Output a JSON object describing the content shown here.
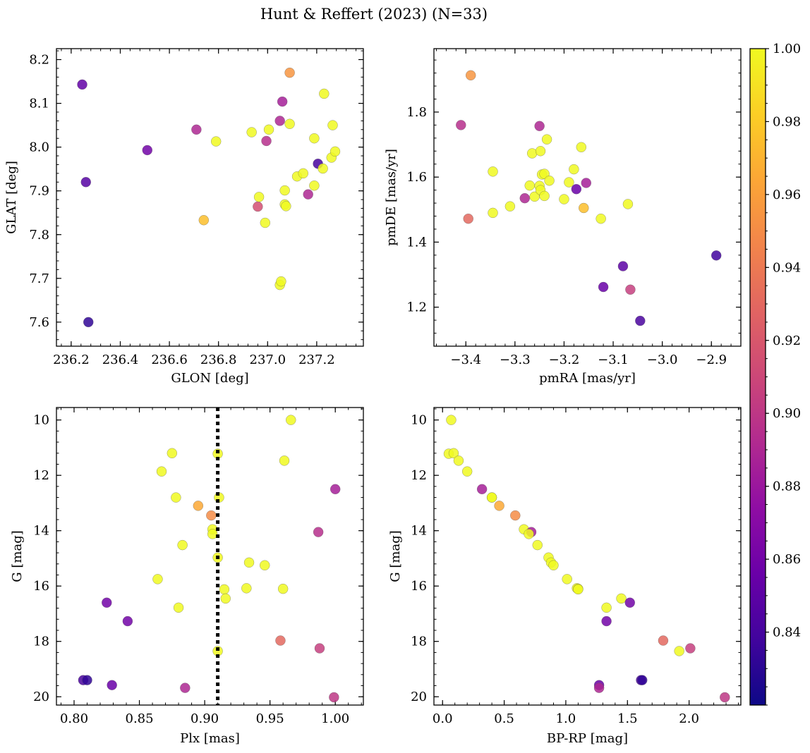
{
  "chart_data": {
    "type": "scatter",
    "title": "Hunt & Reffert (2023) (N=33)",
    "colorbar": {
      "colormap": "plasma",
      "range": [
        0.82,
        1.0
      ],
      "ticks": [
        0.84,
        0.86,
        0.88,
        0.9,
        0.92,
        0.94,
        0.96,
        0.98,
        1.0
      ],
      "tick_labels": [
        "0.84",
        "0.86",
        "0.88",
        "0.90",
        "0.92",
        "0.94",
        "0.96",
        "0.98",
        "1.00"
      ]
    },
    "panels": [
      {
        "id": "glon-glat",
        "xlabel": "GLON [deg]",
        "ylabel": "GLAT [deg]",
        "xlim": [
          236.14,
          237.39
        ],
        "ylim": [
          7.545,
          8.225
        ],
        "invert_y": false,
        "xticks": [
          236.2,
          236.4,
          236.6,
          236.8,
          237.0,
          237.2
        ],
        "xtick_labels": [
          "236.2",
          "236.4",
          "236.6",
          "236.8",
          "237.0",
          "237.2"
        ],
        "yticks": [
          7.6,
          7.7,
          7.8,
          7.9,
          8.0,
          8.1,
          8.2
        ],
        "ytick_labels": [
          "7.6",
          "7.7",
          "7.8",
          "7.9",
          "8.0",
          "8.1",
          "8.2"
        ],
        "points": [
          {
            "x": 236.245,
            "y": 8.143,
            "c": 0.852
          },
          {
            "x": 236.26,
            "y": 7.92,
            "c": 0.847
          },
          {
            "x": 236.27,
            "y": 7.6,
            "c": 0.832
          },
          {
            "x": 236.51,
            "y": 7.993,
            "c": 0.86
          },
          {
            "x": 236.71,
            "y": 8.04,
            "c": 0.89
          },
          {
            "x": 236.74,
            "y": 7.833,
            "c": 0.975
          },
          {
            "x": 236.79,
            "y": 8.013,
            "c": 1.0
          },
          {
            "x": 236.935,
            "y": 8.034,
            "c": 1.0
          },
          {
            "x": 236.96,
            "y": 7.864,
            "c": 0.915
          },
          {
            "x": 236.965,
            "y": 7.886,
            "c": 1.0
          },
          {
            "x": 236.99,
            "y": 7.827,
            "c": 1.0
          },
          {
            "x": 236.995,
            "y": 8.014,
            "c": 0.895
          },
          {
            "x": 237.005,
            "y": 8.04,
            "c": 1.0
          },
          {
            "x": 237.05,
            "y": 8.06,
            "c": 0.89
          },
          {
            "x": 237.05,
            "y": 7.685,
            "c": 1.0
          },
          {
            "x": 237.055,
            "y": 7.693,
            "c": 1.0
          },
          {
            "x": 237.06,
            "y": 8.104,
            "c": 0.885
          },
          {
            "x": 237.07,
            "y": 7.901,
            "c": 1.0
          },
          {
            "x": 237.07,
            "y": 7.869,
            "c": 1.0
          },
          {
            "x": 237.075,
            "y": 7.865,
            "c": 1.0
          },
          {
            "x": 237.09,
            "y": 8.17,
            "c": 0.955
          },
          {
            "x": 237.09,
            "y": 8.053,
            "c": 1.0
          },
          {
            "x": 237.12,
            "y": 7.933,
            "c": 1.0
          },
          {
            "x": 237.145,
            "y": 7.94,
            "c": 1.0
          },
          {
            "x": 237.165,
            "y": 7.892,
            "c": 0.89
          },
          {
            "x": 237.19,
            "y": 7.912,
            "c": 1.0
          },
          {
            "x": 237.19,
            "y": 8.02,
            "c": 1.0
          },
          {
            "x": 237.205,
            "y": 7.962,
            "c": 0.84
          },
          {
            "x": 237.225,
            "y": 7.951,
            "c": 1.0
          },
          {
            "x": 237.23,
            "y": 8.122,
            "c": 1.0
          },
          {
            "x": 237.26,
            "y": 7.976,
            "c": 1.0
          },
          {
            "x": 237.265,
            "y": 8.05,
            "c": 1.0
          },
          {
            "x": 237.275,
            "y": 7.99,
            "c": 1.0
          }
        ]
      },
      {
        "id": "pmra-pmde",
        "xlabel": "pmRA [mas/yr]",
        "ylabel": "pmDE [mas/yr]",
        "xlim": [
          -3.465,
          -2.84
        ],
        "ylim": [
          1.08,
          1.995
        ],
        "invert_y": false,
        "xticks": [
          -3.4,
          -3.3,
          -3.2,
          -3.1,
          -3.0,
          -2.9
        ],
        "xtick_labels": [
          "−3.4",
          "−3.3",
          "−3.2",
          "−3.1",
          "−3.0",
          "−2.9"
        ],
        "yticks": [
          1.2,
          1.4,
          1.6,
          1.8
        ],
        "ytick_labels": [
          "1.2",
          "1.4",
          "1.6",
          "1.8"
        ],
        "points": [
          {
            "x": -3.41,
            "y": 1.76,
            "c": 0.895
          },
          {
            "x": -3.39,
            "y": 1.913,
            "c": 0.955
          },
          {
            "x": -3.395,
            "y": 1.472,
            "c": 0.93
          },
          {
            "x": -3.345,
            "y": 1.617,
            "c": 1.0
          },
          {
            "x": -3.345,
            "y": 1.49,
            "c": 1.0
          },
          {
            "x": -3.31,
            "y": 1.51,
            "c": 1.0
          },
          {
            "x": -3.28,
            "y": 1.535,
            "c": 0.89
          },
          {
            "x": -3.27,
            "y": 1.574,
            "c": 1.0
          },
          {
            "x": -3.265,
            "y": 1.673,
            "c": 1.0
          },
          {
            "x": -3.26,
            "y": 1.54,
            "c": 1.0
          },
          {
            "x": -3.25,
            "y": 1.573,
            "c": 1.0
          },
          {
            "x": -3.25,
            "y": 1.757,
            "c": 0.89
          },
          {
            "x": -3.248,
            "y": 1.68,
            "c": 1.0
          },
          {
            "x": -3.245,
            "y": 1.608,
            "c": 1.0
          },
          {
            "x": -3.248,
            "y": 1.56,
            "c": 1.0
          },
          {
            "x": -3.24,
            "y": 1.61,
            "c": 1.0
          },
          {
            "x": -3.24,
            "y": 1.542,
            "c": 1.0
          },
          {
            "x": -3.235,
            "y": 1.716,
            "c": 1.0
          },
          {
            "x": -3.23,
            "y": 1.589,
            "c": 1.0
          },
          {
            "x": -3.2,
            "y": 1.532,
            "c": 1.0
          },
          {
            "x": -3.19,
            "y": 1.584,
            "c": 1.0
          },
          {
            "x": -3.18,
            "y": 1.624,
            "c": 1.0
          },
          {
            "x": -3.175,
            "y": 1.563,
            "c": 0.855
          },
          {
            "x": -3.165,
            "y": 1.692,
            "c": 1.0
          },
          {
            "x": -3.16,
            "y": 1.505,
            "c": 0.975
          },
          {
            "x": -3.155,
            "y": 1.582,
            "c": 0.885
          },
          {
            "x": -3.125,
            "y": 1.472,
            "c": 1.0
          },
          {
            "x": -3.12,
            "y": 1.262,
            "c": 0.855
          },
          {
            "x": -3.08,
            "y": 1.326,
            "c": 0.85
          },
          {
            "x": -3.07,
            "y": 1.517,
            "c": 1.0
          },
          {
            "x": -3.065,
            "y": 1.254,
            "c": 0.905
          },
          {
            "x": -3.045,
            "y": 1.158,
            "c": 0.842
          },
          {
            "x": -2.89,
            "y": 1.359,
            "c": 0.838
          }
        ]
      },
      {
        "id": "plx-g",
        "xlabel": "Plx [mas]",
        "ylabel": "G [mag]",
        "xlim": [
          0.7865,
          1.0215
        ],
        "ylim": [
          9.55,
          20.3
        ],
        "invert_y": true,
        "xticks": [
          0.8,
          0.85,
          0.9,
          0.95,
          1.0
        ],
        "xtick_labels": [
          "0.80",
          "0.85",
          "0.90",
          "0.95",
          "1.00"
        ],
        "yticks": [
          10,
          12,
          14,
          16,
          18,
          20
        ],
        "ytick_labels": [
          "10",
          "12",
          "14",
          "16",
          "18",
          "20"
        ],
        "vline": {
          "x": 0.91,
          "style": "dotted"
        },
        "points": [
          {
            "x": 0.966,
            "y": 10.0,
            "c": 1.0
          },
          {
            "x": 0.875,
            "y": 11.2,
            "c": 1.0
          },
          {
            "x": 0.91,
            "y": 11.22,
            "c": 1.0
          },
          {
            "x": 0.961,
            "y": 11.47,
            "c": 1.0
          },
          {
            "x": 0.867,
            "y": 11.86,
            "c": 1.0
          },
          {
            "x": 1.0,
            "y": 12.5,
            "c": 0.885
          },
          {
            "x": 0.878,
            "y": 12.8,
            "c": 1.0
          },
          {
            "x": 0.911,
            "y": 12.8,
            "c": 1.0
          },
          {
            "x": 0.895,
            "y": 13.1,
            "c": 0.965
          },
          {
            "x": 0.905,
            "y": 13.45,
            "c": 0.95
          },
          {
            "x": 0.906,
            "y": 13.95,
            "c": 1.0
          },
          {
            "x": 0.906,
            "y": 14.12,
            "c": 1.0
          },
          {
            "x": 0.987,
            "y": 14.05,
            "c": 0.895
          },
          {
            "x": 0.883,
            "y": 14.52,
            "c": 1.0
          },
          {
            "x": 0.91,
            "y": 14.97,
            "c": 1.0
          },
          {
            "x": 0.934,
            "y": 15.15,
            "c": 1.0
          },
          {
            "x": 0.946,
            "y": 15.25,
            "c": 1.0
          },
          {
            "x": 0.864,
            "y": 15.75,
            "c": 1.0
          },
          {
            "x": 0.915,
            "y": 16.12,
            "c": 1.0
          },
          {
            "x": 0.932,
            "y": 16.08,
            "c": 1.0
          },
          {
            "x": 0.96,
            "y": 16.1,
            "c": 1.0
          },
          {
            "x": 0.916,
            "y": 16.45,
            "c": 1.0
          },
          {
            "x": 0.825,
            "y": 16.6,
            "c": 0.86
          },
          {
            "x": 0.88,
            "y": 16.78,
            "c": 1.0
          },
          {
            "x": 0.841,
            "y": 17.27,
            "c": 0.86
          },
          {
            "x": 0.958,
            "y": 17.97,
            "c": 0.93
          },
          {
            "x": 0.988,
            "y": 18.25,
            "c": 0.905
          },
          {
            "x": 0.91,
            "y": 18.35,
            "c": 1.0
          },
          {
            "x": 0.807,
            "y": 19.4,
            "c": 0.842
          },
          {
            "x": 0.81,
            "y": 19.4,
            "c": 0.832
          },
          {
            "x": 0.829,
            "y": 19.58,
            "c": 0.855
          },
          {
            "x": 0.885,
            "y": 19.68,
            "c": 0.89
          },
          {
            "x": 0.999,
            "y": 20.02,
            "c": 0.9
          }
        ]
      },
      {
        "id": "bprp-g",
        "xlabel": "BP-RP [mag]",
        "ylabel": "G [mag]",
        "xlim": [
          -0.07,
          2.42
        ],
        "ylim": [
          9.55,
          20.3
        ],
        "invert_y": true,
        "xticks": [
          0.0,
          0.5,
          1.0,
          1.5,
          2.0
        ],
        "xtick_labels": [
          "0.0",
          "0.5",
          "1.0",
          "1.5",
          "2.0"
        ],
        "yticks": [
          10,
          12,
          14,
          16,
          18,
          20
        ],
        "ytick_labels": [
          "10",
          "12",
          "14",
          "16",
          "18",
          "20"
        ],
        "points": [
          {
            "x": 0.07,
            "y": 10.0,
            "c": 1.0
          },
          {
            "x": 0.05,
            "y": 11.22,
            "c": 1.0
          },
          {
            "x": 0.09,
            "y": 11.2,
            "c": 1.0
          },
          {
            "x": 0.13,
            "y": 11.47,
            "c": 1.0
          },
          {
            "x": 0.2,
            "y": 11.86,
            "c": 1.0
          },
          {
            "x": 0.32,
            "y": 12.5,
            "c": 0.885
          },
          {
            "x": 0.4,
            "y": 12.8,
            "c": 1.0
          },
          {
            "x": 0.4,
            "y": 12.8,
            "c": 1.0
          },
          {
            "x": 0.46,
            "y": 13.1,
            "c": 0.965
          },
          {
            "x": 0.59,
            "y": 13.45,
            "c": 0.95
          },
          {
            "x": 0.66,
            "y": 13.95,
            "c": 1.0
          },
          {
            "x": 0.72,
            "y": 14.05,
            "c": 0.885
          },
          {
            "x": 0.7,
            "y": 14.12,
            "c": 1.0
          },
          {
            "x": 0.77,
            "y": 14.52,
            "c": 1.0
          },
          {
            "x": 0.86,
            "y": 14.97,
            "c": 1.0
          },
          {
            "x": 0.88,
            "y": 15.15,
            "c": 1.0
          },
          {
            "x": 0.9,
            "y": 15.25,
            "c": 1.0
          },
          {
            "x": 1.01,
            "y": 15.75,
            "c": 1.0
          },
          {
            "x": 1.09,
            "y": 16.08,
            "c": 1.0
          },
          {
            "x": 1.1,
            "y": 16.1,
            "c": 1.0
          },
          {
            "x": 1.1,
            "y": 16.12,
            "c": 1.0
          },
          {
            "x": 1.45,
            "y": 16.45,
            "c": 1.0
          },
          {
            "x": 1.52,
            "y": 16.6,
            "c": 0.86
          },
          {
            "x": 1.33,
            "y": 16.78,
            "c": 1.0
          },
          {
            "x": 1.33,
            "y": 17.27,
            "c": 0.86
          },
          {
            "x": 1.79,
            "y": 17.97,
            "c": 0.93
          },
          {
            "x": 1.92,
            "y": 18.35,
            "c": 1.0
          },
          {
            "x": 2.01,
            "y": 18.25,
            "c": 0.905
          },
          {
            "x": 1.27,
            "y": 19.58,
            "c": 0.855
          },
          {
            "x": 1.27,
            "y": 19.68,
            "c": 0.89
          },
          {
            "x": 1.61,
            "y": 19.4,
            "c": 0.842
          },
          {
            "x": 1.62,
            "y": 19.4,
            "c": 0.832
          },
          {
            "x": 2.29,
            "y": 20.02,
            "c": 0.9
          }
        ]
      }
    ]
  }
}
